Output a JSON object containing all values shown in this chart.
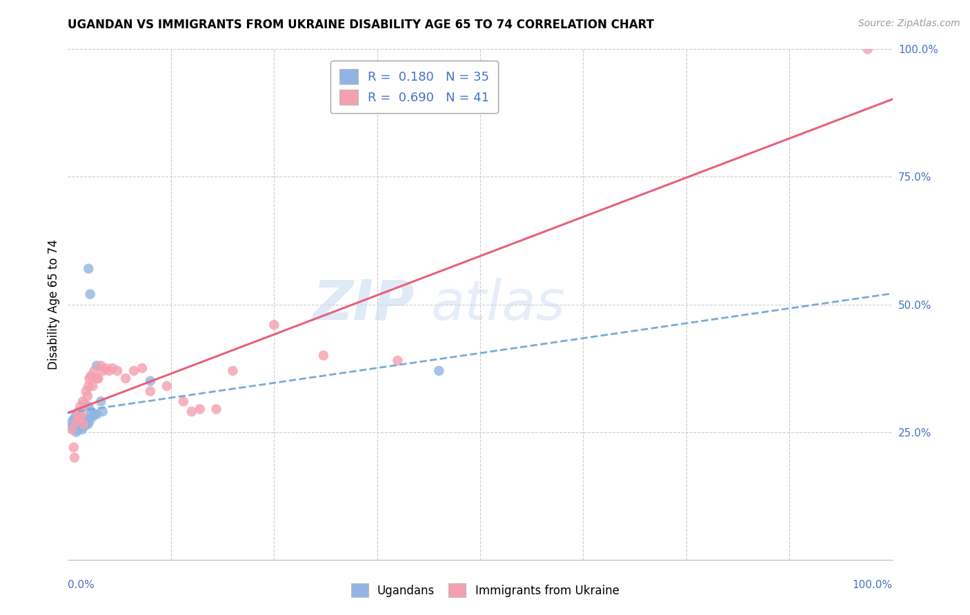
{
  "title": "UGANDAN VS IMMIGRANTS FROM UKRAINE DISABILITY AGE 65 TO 74 CORRELATION CHART",
  "source": "Source: ZipAtlas.com",
  "ylabel": "Disability Age 65 to 74",
  "xlim": [
    0,
    1
  ],
  "ylim": [
    0,
    1
  ],
  "ytick_positions": [
    0.0,
    0.25,
    0.5,
    0.75,
    1.0
  ],
  "ytick_labels": [
    "",
    "25.0%",
    "50.0%",
    "75.0%",
    "100.0%"
  ],
  "legend_r1": "R =  0.180",
  "legend_n1": "N = 35",
  "legend_r2": "R =  0.690",
  "legend_n2": "N = 41",
  "color_ugandan": "#92b4e3",
  "color_ukraine": "#f4a0b0",
  "color_line_ugandan": "#7aaad8",
  "color_line_ukraine": "#e8607a",
  "ugandan_x": [
    0.005,
    0.005,
    0.007,
    0.008,
    0.009,
    0.01,
    0.01,
    0.012,
    0.013,
    0.013,
    0.014,
    0.015,
    0.015,
    0.016,
    0.017,
    0.018,
    0.019,
    0.02,
    0.021,
    0.022,
    0.023,
    0.024,
    0.025,
    0.026,
    0.028,
    0.03,
    0.032,
    0.035,
    0.04,
    0.042,
    0.025,
    0.027,
    0.035,
    0.1,
    0.45
  ],
  "ugandan_y": [
    0.27,
    0.26,
    0.275,
    0.255,
    0.28,
    0.25,
    0.265,
    0.275,
    0.26,
    0.255,
    0.27,
    0.28,
    0.265,
    0.26,
    0.255,
    0.275,
    0.26,
    0.27,
    0.265,
    0.275,
    0.275,
    0.265,
    0.3,
    0.27,
    0.29,
    0.28,
    0.285,
    0.285,
    0.31,
    0.29,
    0.57,
    0.52,
    0.38,
    0.35,
    0.37
  ],
  "ukraine_x": [
    0.005,
    0.007,
    0.008,
    0.01,
    0.012,
    0.013,
    0.014,
    0.015,
    0.017,
    0.018,
    0.019,
    0.02,
    0.022,
    0.024,
    0.025,
    0.026,
    0.028,
    0.03,
    0.032,
    0.035,
    0.037,
    0.04,
    0.043,
    0.046,
    0.05,
    0.054,
    0.06,
    0.07,
    0.08,
    0.09,
    0.1,
    0.12,
    0.14,
    0.15,
    0.16,
    0.18,
    0.2,
    0.25,
    0.31,
    0.4,
    0.97
  ],
  "ukraine_y": [
    0.255,
    0.22,
    0.2,
    0.27,
    0.285,
    0.29,
    0.275,
    0.3,
    0.285,
    0.31,
    0.265,
    0.305,
    0.33,
    0.32,
    0.34,
    0.355,
    0.36,
    0.34,
    0.37,
    0.355,
    0.355,
    0.38,
    0.37,
    0.375,
    0.37,
    0.375,
    0.37,
    0.355,
    0.37,
    0.375,
    0.33,
    0.34,
    0.31,
    0.29,
    0.295,
    0.295,
    0.37,
    0.46,
    0.4,
    0.39,
    1.0
  ]
}
